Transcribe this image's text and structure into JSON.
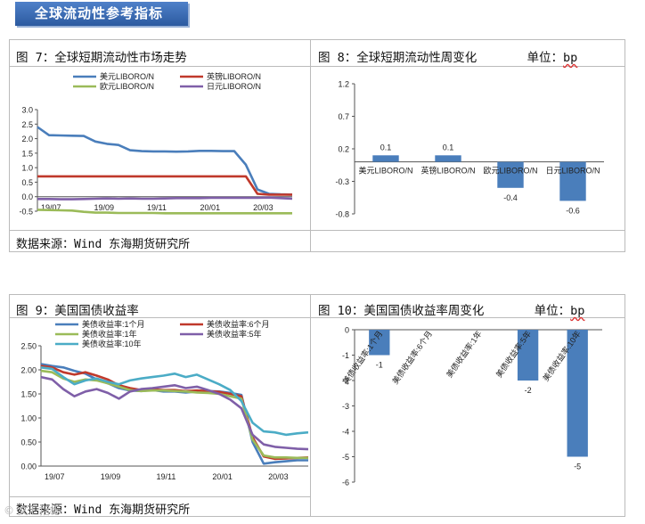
{
  "header": {
    "title": "全球流动性参考指标"
  },
  "fig7": {
    "caption": "图 7：全球短期流动性市场走势",
    "source": "数据来源：Wind  东海期货研究所",
    "chart_data": {
      "type": "line",
      "yticks": [
        "3.0",
        "2.5",
        "2.0",
        "1.5",
        "1.0",
        "0.5",
        "0.0",
        "-0.5"
      ],
      "xticks": [
        "19/07",
        "19/09",
        "19/11",
        "20/01",
        "20/03"
      ],
      "ylim": [
        -0.5,
        3.0
      ],
      "series": [
        {
          "name": "美元LIBORO/N",
          "color": "#4a7ebb",
          "values": [
            2.4,
            2.12,
            2.11,
            2.1,
            2.09,
            1.9,
            1.82,
            1.78,
            1.6,
            1.57,
            1.56,
            1.56,
            1.55,
            1.56,
            1.58,
            1.58,
            1.57,
            1.57,
            1.1,
            0.25,
            0.1,
            0.08,
            0.07
          ]
        },
        {
          "name": "英镑LIBORO/N",
          "color": "#c0392b",
          "values": [
            0.7,
            0.7,
            0.7,
            0.7,
            0.7,
            0.7,
            0.7,
            0.7,
            0.7,
            0.7,
            0.7,
            0.7,
            0.7,
            0.7,
            0.7,
            0.7,
            0.7,
            0.7,
            0.7,
            0.1,
            0.07,
            0.07,
            0.07
          ]
        },
        {
          "name": "欧元LIBORO/N",
          "color": "#9bbb59",
          "values": [
            -0.45,
            -0.46,
            -0.47,
            -0.48,
            -0.52,
            -0.55,
            -0.55,
            -0.56,
            -0.56,
            -0.56,
            -0.56,
            -0.57,
            -0.57,
            -0.57,
            -0.57,
            -0.57,
            -0.57,
            -0.57,
            -0.57,
            -0.57,
            -0.57,
            -0.57,
            -0.57
          ]
        },
        {
          "name": "日元LIBORO/N",
          "color": "#7f5fa8",
          "values": [
            -0.08,
            -0.08,
            -0.09,
            -0.09,
            -0.08,
            -0.07,
            -0.06,
            -0.07,
            -0.06,
            -0.07,
            -0.07,
            -0.06,
            -0.05,
            -0.05,
            -0.05,
            -0.04,
            -0.04,
            -0.04,
            -0.04,
            -0.04,
            -0.03,
            -0.05,
            -0.07
          ]
        }
      ]
    }
  },
  "fig8": {
    "caption": "图 8：全球短期流动性周变化",
    "unit_label": "单位：",
    "unit": "bp",
    "chart_data": {
      "type": "bar",
      "categories": [
        "美元LIBORO/N",
        "英镑LIBORO/N",
        "欧元LIBORO/N",
        "日元LIBORO/N"
      ],
      "values": [
        0.1,
        0.1,
        -0.4,
        -0.6
      ],
      "labels": [
        "0.1",
        "0.1",
        "-0.4",
        "-0.6"
      ],
      "yticks": [
        "1.2",
        "0.7",
        "0.2",
        "-0.3",
        "-0.8"
      ],
      "ylim": [
        -0.8,
        1.2
      ],
      "color": "#4a7ebb"
    }
  },
  "fig9": {
    "caption": "图 9：美国国债收益率",
    "source": "数据来源：Wind  东海期货研究所",
    "chart_data": {
      "type": "line",
      "yticks": [
        "2.50",
        "2.00",
        "1.50",
        "1.00",
        "0.50",
        "0.00"
      ],
      "xticks": [
        "19/07",
        "19/09",
        "19/11",
        "20/01",
        "20/03"
      ],
      "ylim": [
        0,
        2.5
      ],
      "series": [
        {
          "name": "美债收益率:1个月",
          "color": "#4a7ebb",
          "values": [
            2.12,
            2.08,
            2.05,
            1.98,
            1.92,
            1.8,
            1.72,
            1.62,
            1.57,
            1.56,
            1.58,
            1.55,
            1.55,
            1.53,
            1.55,
            1.56,
            1.55,
            1.52,
            1.48,
            0.5,
            0.05,
            0.08,
            0.1,
            0.12,
            0.12
          ]
        },
        {
          "name": "美债收益率:6个月",
          "color": "#c0392b",
          "values": [
            2.08,
            2.05,
            1.95,
            1.9,
            1.95,
            1.88,
            1.8,
            1.68,
            1.62,
            1.58,
            1.59,
            1.58,
            1.58,
            1.56,
            1.57,
            1.56,
            1.54,
            1.5,
            1.45,
            0.6,
            0.2,
            0.15,
            0.16,
            0.17,
            0.18
          ]
        },
        {
          "name": "美债收益率:1年",
          "color": "#9bbb59",
          "values": [
            1.98,
            1.95,
            1.82,
            1.75,
            1.8,
            1.78,
            1.72,
            1.65,
            1.58,
            1.56,
            1.57,
            1.57,
            1.56,
            1.55,
            1.53,
            1.52,
            1.5,
            1.45,
            1.4,
            0.55,
            0.22,
            0.18,
            0.18,
            0.17,
            0.17
          ]
        },
        {
          "name": "美债收益率:5年",
          "color": "#7f5fa8",
          "values": [
            1.85,
            1.8,
            1.6,
            1.45,
            1.55,
            1.6,
            1.52,
            1.4,
            1.55,
            1.6,
            1.62,
            1.65,
            1.68,
            1.62,
            1.65,
            1.58,
            1.5,
            1.38,
            1.2,
            0.65,
            0.45,
            0.4,
            0.38,
            0.36,
            0.35
          ]
        },
        {
          "name": "美债收益率:10年",
          "color": "#4bacc6",
          "values": [
            2.05,
            2.02,
            1.85,
            1.7,
            1.78,
            1.82,
            1.75,
            1.7,
            1.78,
            1.82,
            1.85,
            1.88,
            1.92,
            1.85,
            1.9,
            1.8,
            1.7,
            1.58,
            1.35,
            0.9,
            0.72,
            0.7,
            0.65,
            0.68,
            0.7
          ]
        }
      ]
    }
  },
  "fig10": {
    "caption": "图 10：美国国债收益率周变化",
    "unit_label": "单位：",
    "unit": "bp",
    "chart_data": {
      "type": "bar",
      "categories": [
        "美债收益率:1个月",
        "美债收益率:6个月",
        "美债收益率:1年",
        "美债收益率:5年",
        "美债收益率:10年"
      ],
      "values": [
        -1,
        0,
        0,
        -2,
        -5
      ],
      "labels": [
        "-1",
        "",
        "",
        "-2",
        "-5"
      ],
      "yticks": [
        "0",
        "-1",
        "-2",
        "-3",
        "-4",
        "-5",
        "-6"
      ],
      "ylim": [
        -6,
        0
      ],
      "color": "#4a7ebb"
    }
  },
  "watermark": "© 文汇指标"
}
